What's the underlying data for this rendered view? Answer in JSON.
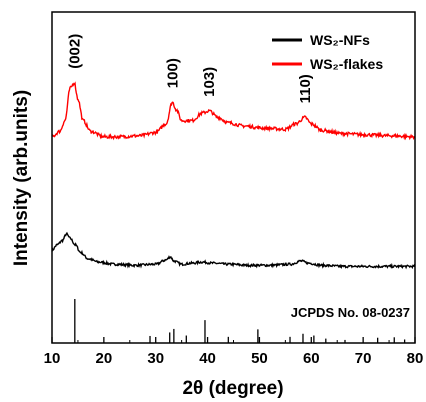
{
  "chart_data": {
    "type": "line",
    "xlabel": "2θ (degree)",
    "ylabel": "Intensity (arb.units)",
    "xlim": [
      10,
      80
    ],
    "x_ticks": [
      10,
      20,
      30,
      40,
      50,
      60,
      70,
      80
    ],
    "y_ticks_labeled": false,
    "series": [
      {
        "name": "WS₂-NFs",
        "color": "#000000",
        "points": [
          [
            10,
            0.35
          ],
          [
            11,
            0.4
          ],
          [
            12,
            0.44
          ],
          [
            12.8,
            0.5
          ],
          [
            13.5,
            0.46
          ],
          [
            14.5,
            0.4
          ],
          [
            15.5,
            0.33
          ],
          [
            17,
            0.27
          ],
          [
            19,
            0.24
          ],
          [
            22,
            0.22
          ],
          [
            26,
            0.21
          ],
          [
            30,
            0.22
          ],
          [
            32,
            0.26
          ],
          [
            32.8,
            0.29
          ],
          [
            33.5,
            0.25
          ],
          [
            35,
            0.22
          ],
          [
            37,
            0.23
          ],
          [
            39,
            0.24
          ],
          [
            41,
            0.23
          ],
          [
            44,
            0.22
          ],
          [
            48,
            0.21
          ],
          [
            52,
            0.21
          ],
          [
            56,
            0.22
          ],
          [
            58,
            0.25
          ],
          [
            59.5,
            0.23
          ],
          [
            62,
            0.21
          ],
          [
            66,
            0.2
          ],
          [
            70,
            0.2
          ],
          [
            75,
            0.2
          ],
          [
            80,
            0.2
          ]
        ]
      },
      {
        "name": "WS₂-flakes",
        "color": "#ff0000",
        "points": [
          [
            10,
            1.4
          ],
          [
            11.5,
            1.45
          ],
          [
            12.5,
            1.55
          ],
          [
            13.5,
            1.85
          ],
          [
            14.3,
            1.9
          ],
          [
            15,
            1.75
          ],
          [
            16,
            1.55
          ],
          [
            17.5,
            1.45
          ],
          [
            20,
            1.4
          ],
          [
            23,
            1.4
          ],
          [
            27,
            1.41
          ],
          [
            30,
            1.44
          ],
          [
            32,
            1.52
          ],
          [
            33.2,
            1.72
          ],
          [
            34,
            1.65
          ],
          [
            35,
            1.55
          ],
          [
            37,
            1.55
          ],
          [
            39,
            1.62
          ],
          [
            40.3,
            1.64
          ],
          [
            42,
            1.58
          ],
          [
            44,
            1.53
          ],
          [
            47,
            1.5
          ],
          [
            51,
            1.48
          ],
          [
            55,
            1.47
          ],
          [
            57,
            1.52
          ],
          [
            58.8,
            1.58
          ],
          [
            60,
            1.52
          ],
          [
            62,
            1.46
          ],
          [
            66,
            1.43
          ],
          [
            70,
            1.42
          ],
          [
            75,
            1.41
          ],
          [
            80,
            1.4
          ]
        ]
      }
    ],
    "peak_labels": [
      {
        "text": "(002)",
        "x": 14.3
      },
      {
        "text": "100)",
        "x": 33.2
      },
      {
        "text": "103)",
        "x": 40.3
      },
      {
        "text": "110)",
        "x": 58.8
      }
    ],
    "reference": {
      "label": "JCPDS No. 08-0237",
      "peaks": [
        {
          "x": 14.4,
          "rel": 1.0
        },
        {
          "x": 28.9,
          "rel": 0.16
        },
        {
          "x": 32.7,
          "rel": 0.24
        },
        {
          "x": 33.5,
          "rel": 0.32
        },
        {
          "x": 35.9,
          "rel": 0.17
        },
        {
          "x": 39.5,
          "rel": 0.52
        },
        {
          "x": 44.0,
          "rel": 0.14
        },
        {
          "x": 49.7,
          "rel": 0.31
        },
        {
          "x": 55.9,
          "rel": 0.14
        },
        {
          "x": 58.4,
          "rel": 0.21
        },
        {
          "x": 60.5,
          "rel": 0.17
        },
        {
          "x": 62.8,
          "rel": 0.1
        },
        {
          "x": 66.5,
          "rel": 0.07
        },
        {
          "x": 72.8,
          "rel": 0.12
        },
        {
          "x": 76.0,
          "rel": 0.13
        },
        {
          "x": 78.0,
          "rel": 0.08
        }
      ]
    },
    "legend_position": "top-right",
    "grid": false
  }
}
